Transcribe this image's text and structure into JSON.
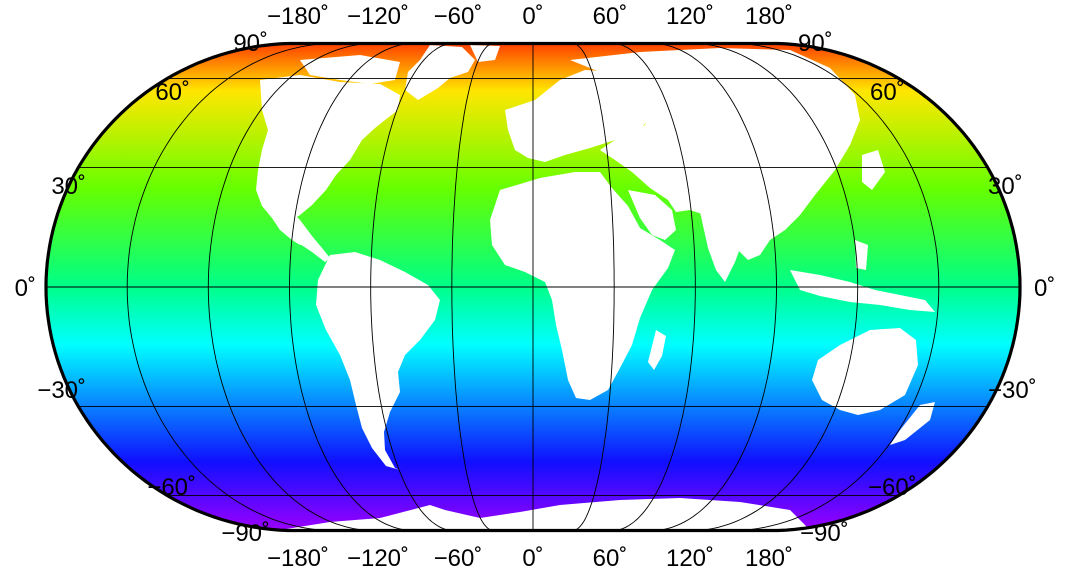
{
  "map": {
    "longitude_top_labels": [
      "−180˚",
      "−120˚",
      "−60˚",
      "0˚",
      "60˚",
      "120˚",
      "180˚"
    ],
    "longitude_bottom_labels": [
      "−180˚",
      "−120˚",
      "−60˚",
      "0˚",
      "60˚",
      "120˚",
      "180˚"
    ],
    "latitude_left_labels": [
      "90˚",
      "60˚",
      "30˚",
      "0˚",
      "−30˚",
      "−60˚",
      "−90˚"
    ],
    "latitude_right_labels": [
      "90˚",
      "60˚",
      "30˚",
      "0˚",
      "−30˚",
      "−60˚",
      "−90˚"
    ],
    "meridians_deg": [
      -180,
      -150,
      -120,
      -90,
      -60,
      -30,
      0,
      30,
      60,
      90,
      120,
      150,
      180
    ],
    "parallels_deg": [
      -60,
      -30,
      0,
      30,
      60
    ],
    "colors": {
      "lat_90": "#ff3b00",
      "lat_60": "#ffe600",
      "lat_30": "#66ff00",
      "lat_0": "#00ff88",
      "lat_-30": "#00ffff",
      "lat_-60": "#1010ff",
      "lat_-90": "#9a00ff",
      "land": "#ffffff",
      "grid": "#000000"
    }
  }
}
